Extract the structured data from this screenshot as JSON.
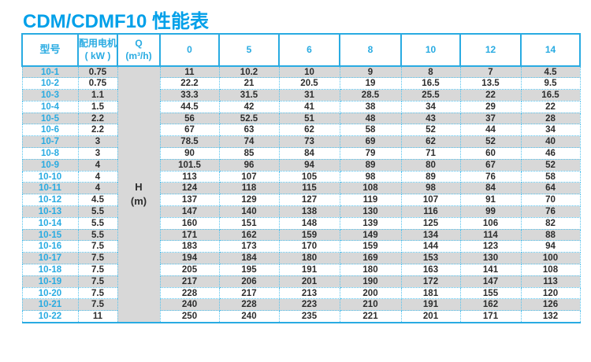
{
  "page": {
    "title": "CDM/CDMF10 性能表"
  },
  "colors": {
    "title": "#00a0e9",
    "header_text": "#29abe2",
    "solid_border": "#29abe2",
    "dotted_border": "#54c3ef",
    "stripe_bg": "#d8d8d8",
    "data_text": "#2d2d2d"
  },
  "table": {
    "headers": {
      "model": "型号",
      "motor_line1": "配用电机",
      "motor_line2": "( kW )",
      "q_line1": "Q",
      "q_line2": "(m³/h)"
    },
    "flow_columns": [
      "0",
      "5",
      "6",
      "8",
      "10",
      "12",
      "14"
    ],
    "h_cell": {
      "line1": "H",
      "line2": "(m)"
    },
    "rows": [
      {
        "model": "10-1",
        "kw": "0.75",
        "values": [
          "11",
          "10.2",
          "10",
          "9",
          "8",
          "7",
          "4.5"
        ]
      },
      {
        "model": "10-2",
        "kw": "0.75",
        "values": [
          "22.2",
          "21",
          "20.5",
          "19",
          "16.5",
          "13.5",
          "9.5"
        ]
      },
      {
        "model": "10-3",
        "kw": "1.1",
        "values": [
          "33.3",
          "31.5",
          "31",
          "28.5",
          "25.5",
          "22",
          "16.5"
        ]
      },
      {
        "model": "10-4",
        "kw": "1.5",
        "values": [
          "44.5",
          "42",
          "41",
          "38",
          "34",
          "29",
          "22"
        ]
      },
      {
        "model": "10-5",
        "kw": "2.2",
        "values": [
          "56",
          "52.5",
          "51",
          "48",
          "43",
          "37",
          "28"
        ]
      },
      {
        "model": "10-6",
        "kw": "2.2",
        "values": [
          "67",
          "63",
          "62",
          "58",
          "52",
          "44",
          "34"
        ]
      },
      {
        "model": "10-7",
        "kw": "3",
        "values": [
          "78.5",
          "74",
          "73",
          "69",
          "62",
          "52",
          "40"
        ]
      },
      {
        "model": "10-8",
        "kw": "3",
        "values": [
          "90",
          "85",
          "84",
          "79",
          "71",
          "60",
          "46"
        ]
      },
      {
        "model": "10-9",
        "kw": "4",
        "values": [
          "101.5",
          "96",
          "94",
          "89",
          "80",
          "67",
          "52"
        ]
      },
      {
        "model": "10-10",
        "kw": "4",
        "values": [
          "113",
          "107",
          "105",
          "98",
          "89",
          "76",
          "58"
        ]
      },
      {
        "model": "10-11",
        "kw": "4",
        "values": [
          "124",
          "118",
          "115",
          "108",
          "98",
          "84",
          "64"
        ]
      },
      {
        "model": "10-12",
        "kw": "4.5",
        "values": [
          "137",
          "129",
          "127",
          "119",
          "107",
          "91",
          "70"
        ]
      },
      {
        "model": "10-13",
        "kw": "5.5",
        "values": [
          "147",
          "140",
          "138",
          "130",
          "116",
          "99",
          "76"
        ]
      },
      {
        "model": "10-14",
        "kw": "5.5",
        "values": [
          "160",
          "151",
          "148",
          "139",
          "125",
          "106",
          "82"
        ]
      },
      {
        "model": "10-15",
        "kw": "5.5",
        "values": [
          "171",
          "162",
          "159",
          "149",
          "134",
          "114",
          "88"
        ]
      },
      {
        "model": "10-16",
        "kw": "7.5",
        "values": [
          "183",
          "173",
          "170",
          "159",
          "144",
          "123",
          "94"
        ]
      },
      {
        "model": "10-17",
        "kw": "7.5",
        "values": [
          "194",
          "184",
          "180",
          "169",
          "153",
          "130",
          "100"
        ]
      },
      {
        "model": "10-18",
        "kw": "7.5",
        "values": [
          "205",
          "195",
          "191",
          "180",
          "163",
          "141",
          "108"
        ]
      },
      {
        "model": "10-19",
        "kw": "7.5",
        "values": [
          "217",
          "206",
          "201",
          "190",
          "172",
          "147",
          "113"
        ]
      },
      {
        "model": "10-20",
        "kw": "7.5",
        "values": [
          "228",
          "217",
          "213",
          "200",
          "181",
          "155",
          "120"
        ]
      },
      {
        "model": "10-21",
        "kw": "7.5",
        "values": [
          "240",
          "228",
          "223",
          "210",
          "191",
          "162",
          "126"
        ]
      },
      {
        "model": "10-22",
        "kw": "11",
        "values": [
          "250",
          "240",
          "235",
          "221",
          "201",
          "171",
          "132"
        ]
      }
    ]
  }
}
